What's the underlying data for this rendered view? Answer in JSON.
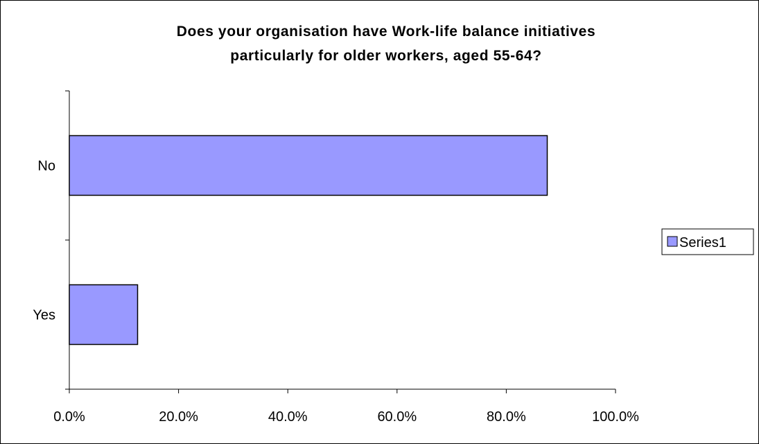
{
  "chart_data": {
    "type": "bar",
    "orientation": "horizontal",
    "title": "Does your organisation have Work-life balance initiatives particularly for older workers, aged 55-64?",
    "title_lines": [
      "Does your organisation have Work-life balance initiatives",
      "particularly for older workers, aged 55-64?"
    ],
    "categories": [
      "No",
      "Yes"
    ],
    "series": [
      {
        "name": "Series1",
        "values": [
          87.5,
          12.5
        ],
        "color": "#9999ff"
      }
    ],
    "xlim": [
      0,
      100
    ],
    "x_ticks": [
      0,
      20,
      40,
      60,
      80,
      100
    ],
    "x_tick_labels": [
      "0.0%",
      "20.0%",
      "40.0%",
      "60.0%",
      "80.0%",
      "100.0%"
    ],
    "grid": false,
    "legend_position": "right",
    "xlabel": "",
    "ylabel": ""
  }
}
